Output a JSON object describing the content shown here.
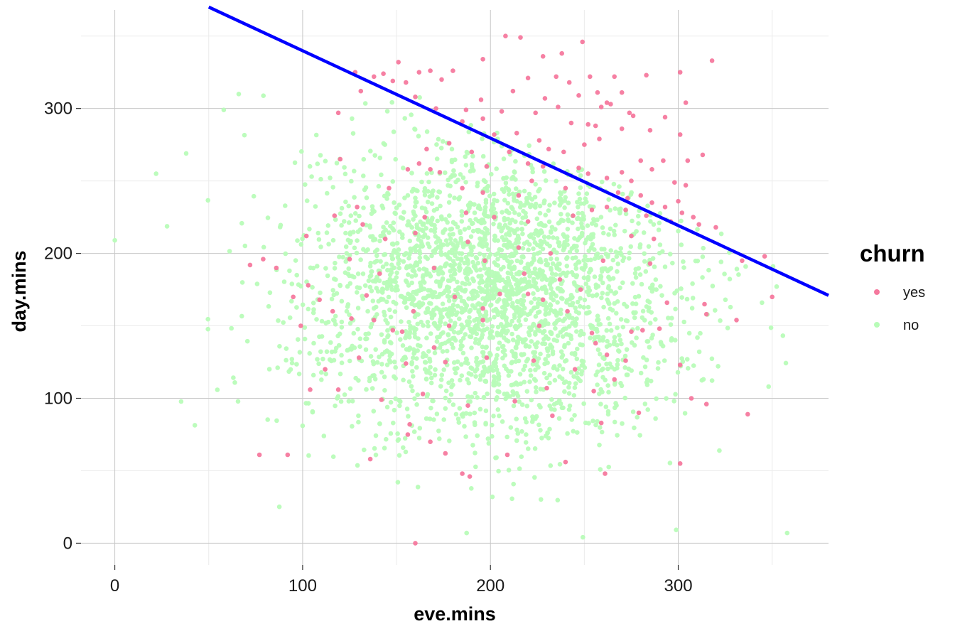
{
  "chart_data": {
    "type": "scatter",
    "xlabel": "eve.mins",
    "ylabel": "day.mins",
    "xlim": [
      -18,
      380
    ],
    "ylim": [
      -15,
      368
    ],
    "x_ticks": [
      0,
      100,
      200,
      300
    ],
    "y_ticks": [
      0,
      100,
      200,
      300
    ],
    "x_tick_labels": [
      "0",
      "100",
      "200",
      "300"
    ],
    "y_tick_labels": [
      "0",
      "100",
      "200",
      "300"
    ],
    "grid": true,
    "legend": {
      "title": "churn",
      "position": "right",
      "entries": [
        {
          "label": "yes",
          "color": "#f5799e"
        },
        {
          "label": "no",
          "color": "#b8fcb8"
        }
      ]
    },
    "decision_line": {
      "color": "#0000ff",
      "points": [
        [
          50,
          370
        ],
        [
          380,
          171
        ]
      ]
    },
    "series": [
      {
        "name": "yes",
        "color": "#f5799e",
        "points": [
          [
            208,
            350
          ],
          [
            216,
            349
          ],
          [
            249,
            346
          ],
          [
            196,
            334
          ],
          [
            238,
            338
          ],
          [
            228,
            336
          ],
          [
            318,
            333
          ],
          [
            151,
            332
          ],
          [
            301,
            325
          ],
          [
            168,
            326
          ],
          [
            180,
            326
          ],
          [
            162,
            325
          ],
          [
            128,
            325
          ],
          [
            220,
            321
          ],
          [
            235,
            322
          ],
          [
            253,
            322
          ],
          [
            266,
            322
          ],
          [
            283,
            323
          ],
          [
            143,
            324
          ],
          [
            138,
            322
          ],
          [
            148,
            319
          ],
          [
            155,
            318
          ],
          [
            174,
            320
          ],
          [
            212,
            312
          ],
          [
            242,
            318
          ],
          [
            131,
            312
          ],
          [
            160,
            308
          ],
          [
            195,
            306
          ],
          [
            229,
            307
          ],
          [
            247,
            309
          ],
          [
            257,
            311
          ],
          [
            270,
            311
          ],
          [
            304,
            304
          ],
          [
            262,
            304
          ],
          [
            274,
            297
          ],
          [
            119,
            297
          ],
          [
            171,
            300
          ],
          [
            187,
            299
          ],
          [
            206,
            298
          ],
          [
            224,
            297
          ],
          [
            236,
            301
          ],
          [
            259,
            301
          ],
          [
            264,
            303
          ],
          [
            276,
            295
          ],
          [
            293,
            294
          ],
          [
            196,
            293
          ],
          [
            185,
            291
          ],
          [
            243,
            290
          ],
          [
            252,
            289
          ],
          [
            256,
            288
          ],
          [
            270,
            286
          ],
          [
            285,
            285
          ],
          [
            301,
            282
          ],
          [
            202,
            282
          ],
          [
            214,
            283
          ],
          [
            226,
            278
          ],
          [
            231,
            272
          ],
          [
            258,
            279
          ],
          [
            250,
            275
          ],
          [
            239,
            270
          ],
          [
            210,
            270
          ],
          [
            190,
            270
          ],
          [
            178,
            276
          ],
          [
            166,
            272
          ],
          [
            162,
            262
          ],
          [
            168,
            258
          ],
          [
            198,
            260
          ],
          [
            220,
            262
          ],
          [
            228,
            260
          ],
          [
            247,
            259
          ],
          [
            252,
            255
          ],
          [
            262,
            252
          ],
          [
            268,
            242
          ],
          [
            273,
            238
          ],
          [
            280,
            240
          ],
          [
            286,
            235
          ],
          [
            293,
            232
          ],
          [
            302,
            228
          ],
          [
            308,
            225
          ],
          [
            311,
            220
          ],
          [
            320,
            218
          ],
          [
            304,
            247
          ],
          [
            305,
            264
          ],
          [
            313,
            268
          ],
          [
            280,
            264
          ],
          [
            292,
            264
          ],
          [
            286,
            258
          ],
          [
            270,
            256
          ],
          [
            298,
            249
          ],
          [
            275,
            250
          ],
          [
            240,
            245
          ],
          [
            215,
            240
          ],
          [
            222,
            250
          ],
          [
            196,
            242
          ],
          [
            185,
            245
          ],
          [
            173,
            256
          ],
          [
            156,
            258
          ],
          [
            146,
            245
          ],
          [
            120,
            265
          ],
          [
            117,
            226
          ],
          [
            129,
            232
          ],
          [
            132,
            220
          ],
          [
            165,
            225
          ],
          [
            187,
            228
          ],
          [
            202,
            225
          ],
          [
            220,
            222
          ],
          [
            244,
            226
          ],
          [
            254,
            230
          ],
          [
            262,
            232
          ],
          [
            272,
            230
          ],
          [
            283,
            226
          ],
          [
            300,
            236
          ],
          [
            296,
            222
          ],
          [
            287,
            210
          ],
          [
            275,
            212
          ],
          [
            285,
            193
          ],
          [
            260,
            195
          ],
          [
            232,
            200
          ],
          [
            215,
            204
          ],
          [
            188,
            208
          ],
          [
            160,
            214
          ],
          [
            144,
            210
          ],
          [
            102,
            212
          ],
          [
            125,
            196
          ],
          [
            141,
            186
          ],
          [
            170,
            190
          ],
          [
            197,
            195
          ],
          [
            218,
            186
          ],
          [
            237,
            182
          ],
          [
            248,
            175
          ],
          [
            228,
            168
          ],
          [
            205,
            172
          ],
          [
            181,
            170
          ],
          [
            159,
            160
          ],
          [
            134,
            171
          ],
          [
            116,
            160
          ],
          [
            138,
            154
          ],
          [
            153,
            146
          ],
          [
            178,
            150
          ],
          [
            196,
            154
          ],
          [
            226,
            150
          ],
          [
            254,
            145
          ],
          [
            275,
            146
          ],
          [
            294,
            166
          ],
          [
            314,
            165
          ],
          [
            331,
            154
          ],
          [
            346,
            198
          ],
          [
            350,
            170
          ],
          [
            334,
            195
          ],
          [
            315,
            158
          ],
          [
            301,
            123
          ],
          [
            281,
            147
          ],
          [
            262,
            130
          ],
          [
            245,
            120
          ],
          [
            223,
            126
          ],
          [
            198,
            128
          ],
          [
            176,
            125
          ],
          [
            155,
            124
          ],
          [
            130,
            128
          ],
          [
            112,
            120
          ],
          [
            104,
            106
          ],
          [
            119,
            106
          ],
          [
            142,
            99
          ],
          [
            164,
            103
          ],
          [
            188,
            95
          ],
          [
            213,
            98
          ],
          [
            233,
            88
          ],
          [
            259,
            83
          ],
          [
            279,
            90
          ],
          [
            307,
            100
          ],
          [
            315,
            96
          ],
          [
            337,
            89
          ],
          [
            301,
            55
          ],
          [
            261,
            48
          ],
          [
            240,
            56
          ],
          [
            209,
            61
          ],
          [
            185,
            48
          ],
          [
            176,
            62
          ],
          [
            168,
            70
          ],
          [
            156,
            75
          ],
          [
            136,
            58
          ],
          [
            92,
            61
          ],
          [
            77,
            61
          ],
          [
            72,
            192
          ],
          [
            157,
            82
          ],
          [
            189,
            46
          ],
          [
            230,
            107
          ],
          [
            255,
            105
          ],
          [
            266,
            113
          ],
          [
            272,
            126
          ],
          [
            290,
            148
          ],
          [
            256,
            138
          ],
          [
            241,
            160
          ],
          [
            220,
            172
          ],
          [
            196,
            162
          ],
          [
            170,
            135
          ],
          [
            148,
            147
          ],
          [
            126,
            155
          ],
          [
            109,
            168
          ],
          [
            99,
            150
          ],
          [
            86,
            190
          ],
          [
            79,
            196
          ],
          [
            95,
            170
          ],
          [
            103,
            178
          ],
          [
            160,
            0
          ]
        ]
      },
      {
        "name": "no",
        "color": "#b8fcb8",
        "points": []
      }
    ]
  }
}
